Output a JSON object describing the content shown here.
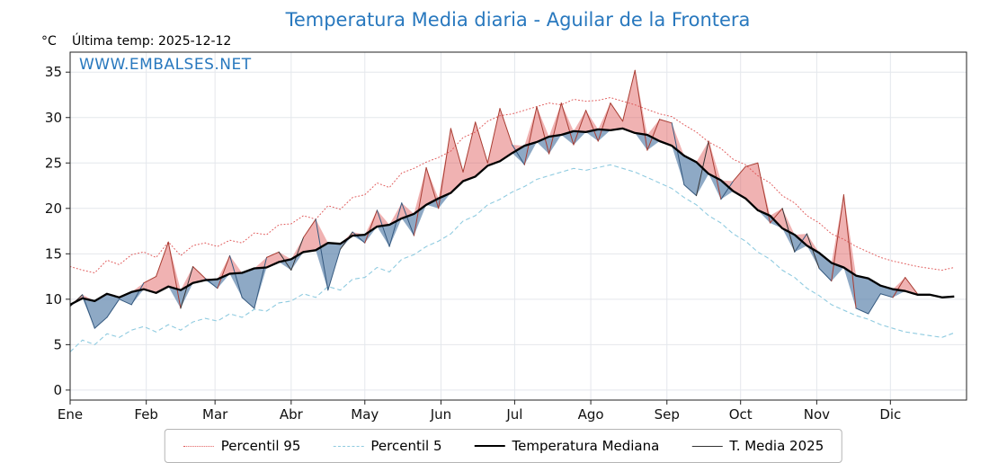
{
  "header": {
    "title": "Temperatura Media diaria - Aguilar de la Frontera",
    "unit": "°C",
    "last_temp": "Última temp: 2025-12-12",
    "watermark": "WWW.EMBALSES.NET"
  },
  "colors": {
    "title": "#2878be",
    "watermark": "#2878be",
    "grid": "#e4e7ec",
    "frame": "#222222",
    "fill_above": "rgba(222,85,85,0.45)",
    "fill_below": "rgba(88,128,170,0.68)"
  },
  "chart_data": {
    "type": "line",
    "title": "Temperatura Media diaria - Aguilar de la Frontera",
    "xlabel": "",
    "ylabel": "°C",
    "ylim": [
      -1.1,
      37.2
    ],
    "yticks": [
      0,
      5,
      10,
      15,
      20,
      25,
      30,
      35
    ],
    "xlim_days": [
      1,
      366
    ],
    "grid": true,
    "legend_position": "bottom",
    "month_labels": [
      "Ene",
      "Feb",
      "Mar",
      "Abr",
      "May",
      "Jun",
      "Jul",
      "Ago",
      "Sep",
      "Oct",
      "Nov",
      "Dic"
    ],
    "month_start_days": [
      1,
      32,
      60,
      91,
      121,
      152,
      182,
      213,
      244,
      274,
      305,
      335
    ],
    "days": [
      1,
      6,
      11,
      16,
      21,
      26,
      31,
      36,
      41,
      46,
      51,
      56,
      61,
      66,
      71,
      76,
      81,
      86,
      91,
      96,
      101,
      106,
      111,
      116,
      121,
      126,
      131,
      136,
      141,
      146,
      151,
      156,
      161,
      166,
      171,
      176,
      181,
      186,
      191,
      196,
      201,
      206,
      211,
      216,
      221,
      226,
      231,
      236,
      241,
      246,
      251,
      256,
      261,
      266,
      271,
      276,
      281,
      286,
      291,
      296,
      301,
      306,
      311,
      316,
      321,
      326,
      331,
      336,
      341,
      346,
      351,
      356,
      361
    ],
    "series": [
      {
        "name": "Percentil 95",
        "color": "#e05a5a",
        "style": "dotted",
        "width": 1,
        "values": [
          13.6,
          13.2,
          12.9,
          14.3,
          13.8,
          14.9,
          15.2,
          14.6,
          16.3,
          14.8,
          15.9,
          16.2,
          15.8,
          16.5,
          16.2,
          17.3,
          17.1,
          18.2,
          18.3,
          19.2,
          18.8,
          20.3,
          19.9,
          21.2,
          21.5,
          22.8,
          22.3,
          23.9,
          24.4,
          25.1,
          25.6,
          26.3,
          27.8,
          28.4,
          29.6,
          30.2,
          30.4,
          30.8,
          31.2,
          31.6,
          31.4,
          32.0,
          31.8,
          31.9,
          32.2,
          31.8,
          31.4,
          30.9,
          30.4,
          30.1,
          29.2,
          28.4,
          27.3,
          26.6,
          25.4,
          24.8,
          23.6,
          22.8,
          21.4,
          20.6,
          19.2,
          18.4,
          17.2,
          16.6,
          15.8,
          15.2,
          14.6,
          14.2,
          13.9,
          13.6,
          13.4,
          13.2,
          13.5
        ]
      },
      {
        "name": "Percentil 5",
        "color": "#8fcbe0",
        "style": "dashed",
        "width": 1.1,
        "values": [
          4.2,
          5.5,
          5.0,
          6.2,
          5.8,
          6.6,
          7.0,
          6.4,
          7.2,
          6.6,
          7.5,
          7.9,
          7.6,
          8.4,
          8.0,
          8.9,
          8.7,
          9.6,
          9.8,
          10.6,
          10.2,
          11.4,
          11.0,
          12.2,
          12.4,
          13.5,
          13.0,
          14.4,
          14.9,
          15.8,
          16.4,
          17.2,
          18.6,
          19.2,
          20.4,
          21.0,
          21.8,
          22.4,
          23.2,
          23.6,
          24.0,
          24.4,
          24.2,
          24.5,
          24.8,
          24.4,
          24.0,
          23.4,
          22.8,
          22.2,
          21.2,
          20.4,
          19.2,
          18.4,
          17.2,
          16.4,
          15.2,
          14.4,
          13.2,
          12.4,
          11.2,
          10.4,
          9.4,
          8.8,
          8.2,
          7.8,
          7.2,
          6.8,
          6.4,
          6.2,
          6.0,
          5.8,
          6.3
        ]
      },
      {
        "name": "Temperatura Mediana",
        "color": "#000000",
        "style": "solid",
        "width": 2.3,
        "values": [
          9.4,
          10.1,
          9.8,
          10.6,
          10.2,
          10.8,
          11.1,
          10.7,
          11.4,
          11.0,
          11.8,
          12.1,
          12.2,
          12.8,
          12.9,
          13.4,
          13.5,
          14.1,
          14.4,
          15.2,
          15.4,
          16.2,
          16.1,
          17.0,
          17.1,
          18.0,
          18.2,
          18.9,
          19.4,
          20.4,
          21.1,
          21.7,
          23.0,
          23.5,
          24.7,
          25.2,
          26.1,
          26.9,
          27.3,
          27.9,
          28.1,
          28.5,
          28.4,
          28.7,
          28.6,
          28.8,
          28.3,
          28.1,
          27.4,
          26.9,
          25.8,
          25.1,
          23.8,
          23.1,
          21.9,
          21.1,
          19.8,
          19.2,
          17.8,
          17.1,
          15.9,
          15.1,
          14.0,
          13.5,
          12.6,
          12.3,
          11.5,
          11.1,
          10.9,
          10.5,
          10.5,
          10.2,
          10.3
        ]
      },
      {
        "name": "T. Media 2025",
        "color": "#333333",
        "style": "solid",
        "width": 1,
        "line_above_color": "#a83c32",
        "line_below_color": "#35597f",
        "fill_reference": "Temperatura Mediana",
        "values": [
          9.2,
          10.5,
          6.8,
          8.0,
          10.0,
          9.4,
          11.8,
          12.5,
          16.3,
          9.0,
          13.6,
          12.3,
          11.2,
          14.8,
          10.2,
          9.0,
          14.6,
          15.2,
          13.2,
          16.8,
          18.8,
          11.0,
          15.5,
          17.4,
          16.2,
          19.8,
          15.8,
          20.6,
          17.0,
          24.5,
          20.0,
          28.8,
          24.0,
          29.5,
          25.0,
          31.0,
          27.0,
          24.8,
          31.2,
          26.0,
          31.6,
          27.0,
          30.8,
          27.4,
          31.6,
          29.6,
          35.2,
          26.4,
          29.8,
          29.4,
          22.6,
          21.4,
          27.4,
          21.0,
          23.0,
          24.6,
          25.0,
          18.4,
          20.0,
          15.2,
          17.2,
          13.4,
          12.0,
          21.5,
          9.0,
          8.4,
          10.6,
          10.2,
          12.4,
          10.6,
          null,
          null,
          null
        ]
      }
    ]
  }
}
